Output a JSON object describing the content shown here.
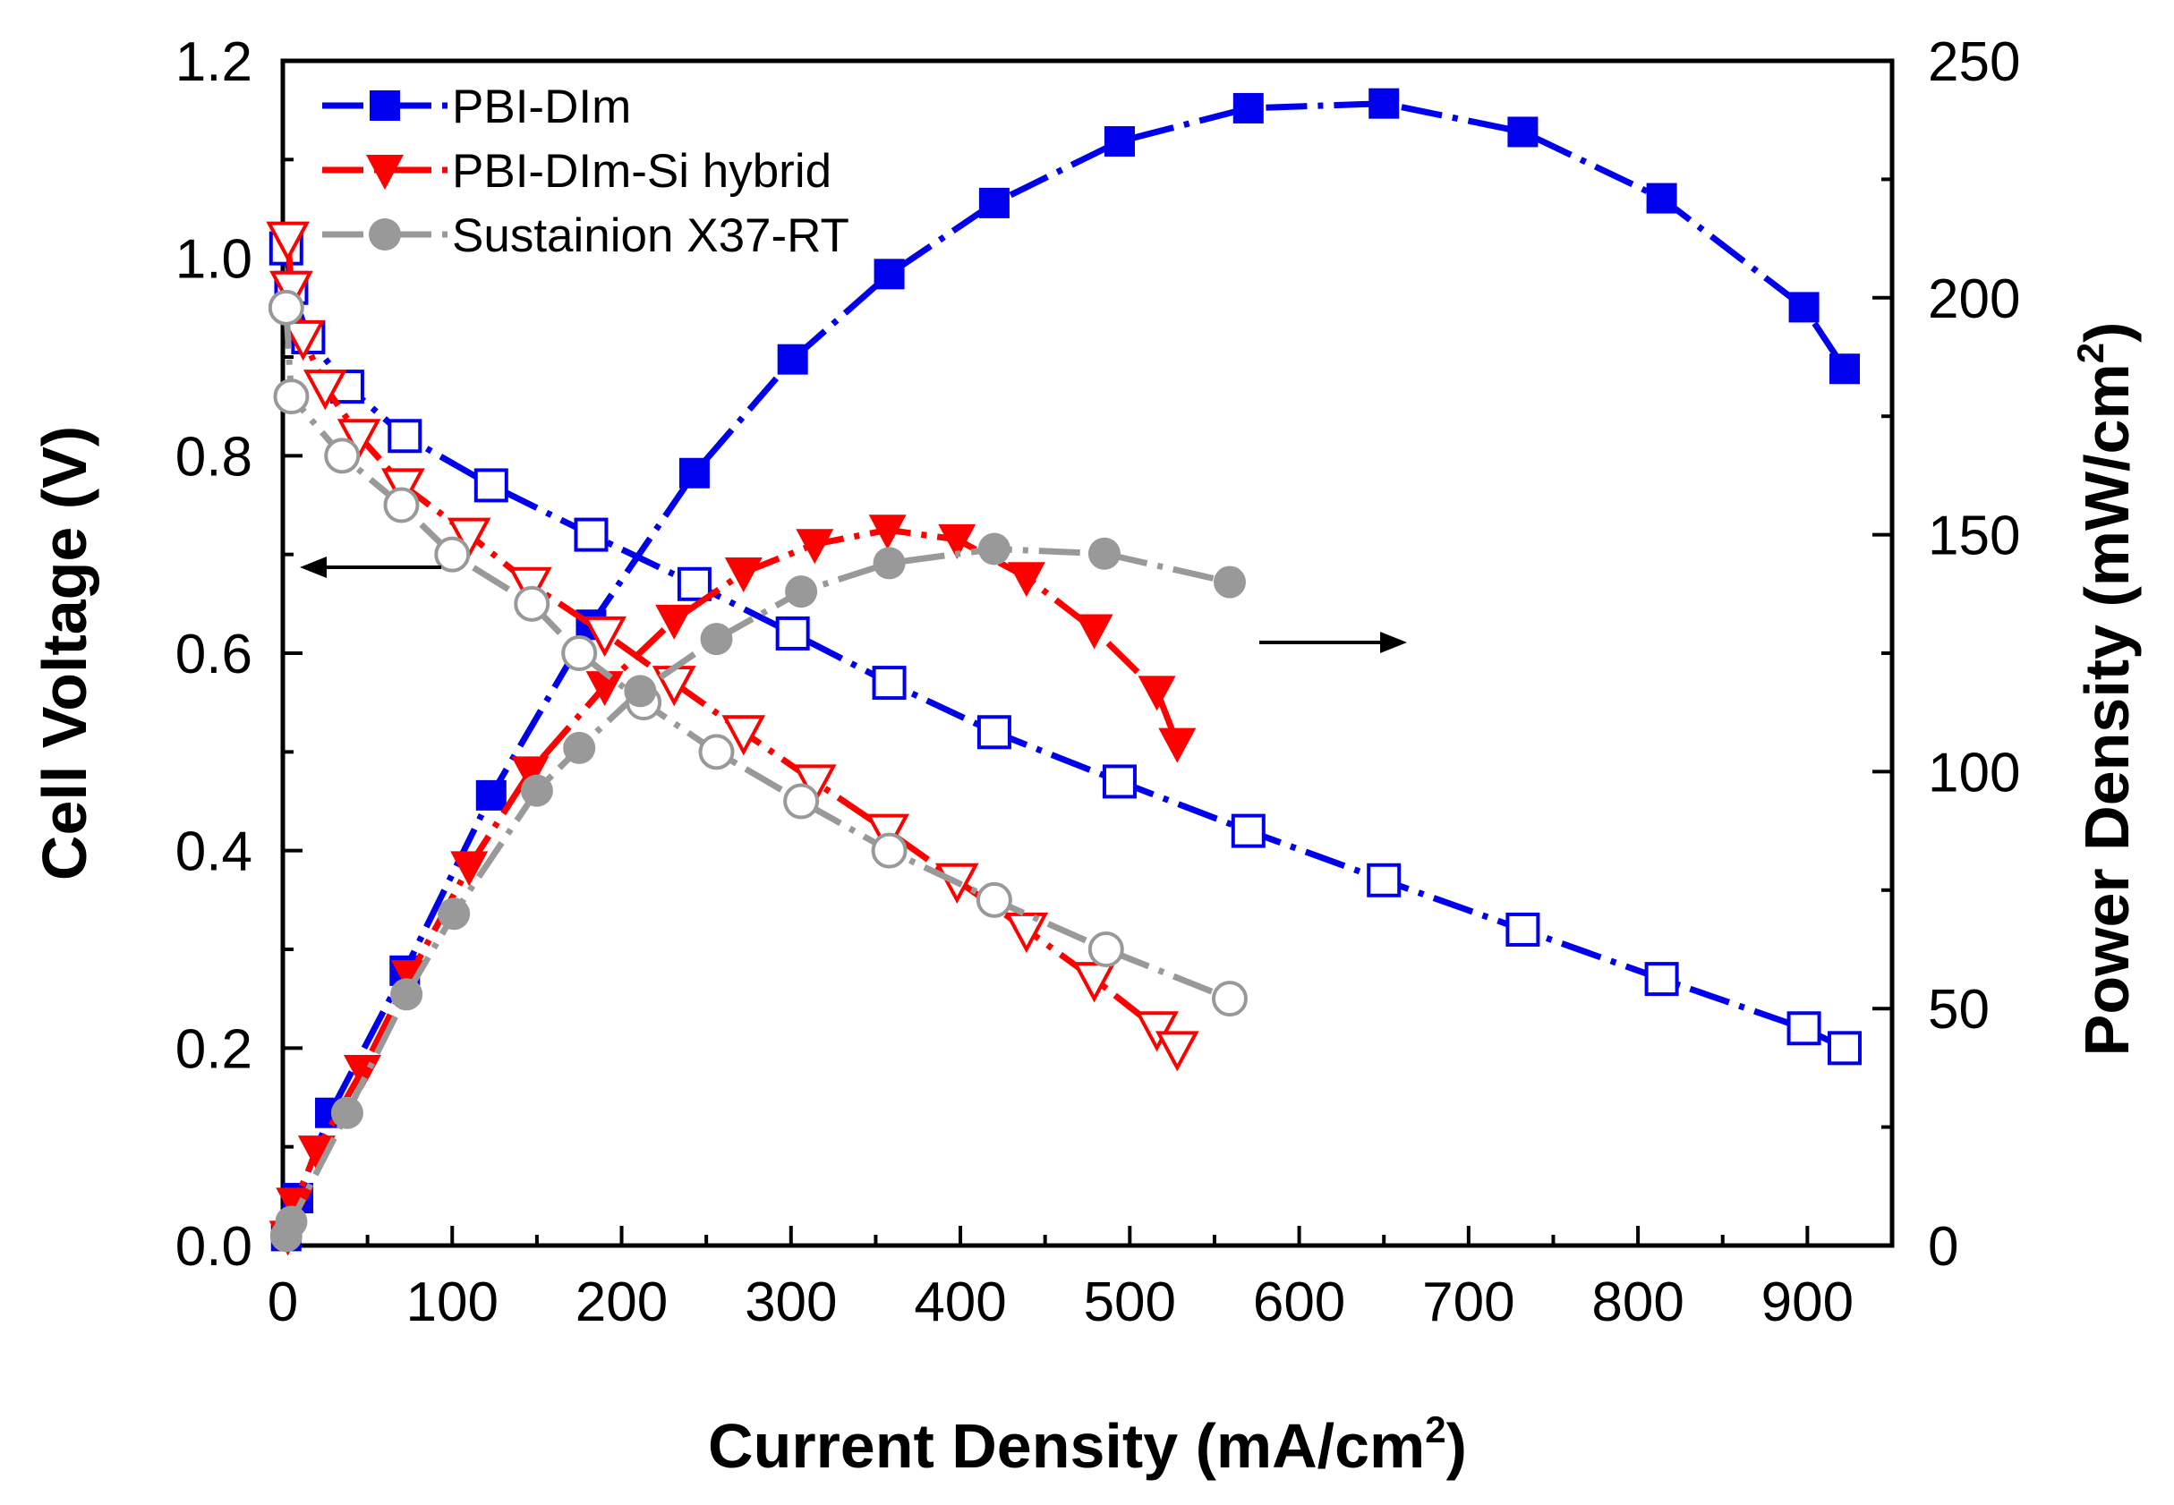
{
  "chart_data": {
    "type": "line",
    "xlabel": "Current Density (mA/cm",
    "xlabel_sup": "2",
    "xlabel_tail": ")",
    "ylabel": "Cell Voltage (V)",
    "y2label": "Power Density (mW/cm",
    "y2label_sup": "2",
    "y2label_tail": ")",
    "xlim": [
      0,
      950
    ],
    "ylim": [
      0,
      1.2
    ],
    "y2lim": [
      0,
      250
    ],
    "xticks": [
      0,
      100,
      200,
      300,
      400,
      500,
      600,
      700,
      800,
      900
    ],
    "yticks": [
      "0.0",
      "0.2",
      "0.4",
      "0.6",
      "0.8",
      "1.0",
      "1.2"
    ],
    "y2ticks": [
      0,
      50,
      100,
      150,
      200,
      250
    ],
    "annotations": [
      {
        "type": "arrow",
        "direction": "left",
        "meaning": "voltage curves refer to left axis"
      },
      {
        "type": "arrow",
        "direction": "right",
        "meaning": "power curves refer to right axis"
      }
    ],
    "series": [
      {
        "name": "PBI-DIm",
        "color": "#0000ee",
        "marker": "square",
        "voltage": {
          "x": [
            2,
            5,
            15,
            38,
            72,
            123,
            182,
            243,
            301,
            358,
            420,
            494,
            570,
            650,
            732,
            814,
            898,
            922
          ],
          "y": [
            1.01,
            0.97,
            0.92,
            0.87,
            0.82,
            0.77,
            0.72,
            0.67,
            0.62,
            0.57,
            0.52,
            0.47,
            0.42,
            0.37,
            0.32,
            0.27,
            0.22,
            0.2
          ]
        },
        "power": {
          "x": [
            2,
            9,
            28,
            72,
            123,
            182,
            243,
            301,
            358,
            420,
            494,
            570,
            650,
            732,
            814,
            898,
            922
          ],
          "y": [
            2,
            10,
            28,
            58,
            95,
            131,
            163,
            187,
            205,
            220,
            233,
            240,
            241,
            235,
            221,
            198,
            185
          ]
        }
      },
      {
        "name": "PBI-DIm-Si hybrid",
        "color": "#ff0000",
        "marker": "triangle-down",
        "voltage": {
          "x": [
            3,
            5,
            12,
            25,
            45,
            71,
            110,
            146,
            190,
            231,
            272,
            314,
            357,
            398,
            439,
            479,
            516,
            528
          ],
          "y": [
            1.02,
            0.97,
            0.92,
            0.87,
            0.82,
            0.77,
            0.72,
            0.67,
            0.62,
            0.57,
            0.52,
            0.47,
            0.42,
            0.37,
            0.32,
            0.27,
            0.22,
            0.2
          ]
        },
        "power": {
          "x": [
            3,
            7,
            20,
            47,
            75,
            110,
            146,
            190,
            231,
            272,
            314,
            357,
            398,
            439,
            479,
            516,
            528
          ],
          "y": [
            2,
            9,
            20,
            37,
            57,
            80,
            100,
            118,
            132,
            142,
            148,
            151,
            149,
            141,
            130,
            117,
            106
          ]
        }
      },
      {
        "name": "Sustainion X37-RT",
        "color": "#999999",
        "marker": "circle",
        "voltage": {
          "x": [
            2,
            5,
            35,
            70,
            100,
            147,
            175,
            213,
            256,
            306,
            358,
            420,
            486,
            559
          ],
          "y": [
            0.95,
            0.86,
            0.8,
            0.75,
            0.7,
            0.65,
            0.6,
            0.55,
            0.5,
            0.45,
            0.4,
            0.35,
            0.3,
            0.25
          ]
        },
        "power": {
          "x": [
            2,
            5,
            38,
            73,
            101,
            150,
            175,
            211,
            256,
            306,
            358,
            420,
            485,
            559
          ],
          "y": [
            2,
            5,
            28,
            53,
            70,
            96,
            105,
            117,
            128,
            138,
            144,
            147,
            146,
            140
          ]
        }
      }
    ],
    "legend": {
      "position": "top-left",
      "entries": [
        "PBI-DIm",
        "PBI-DIm-Si hybrid",
        "Sustainion X37-RT"
      ]
    }
  }
}
